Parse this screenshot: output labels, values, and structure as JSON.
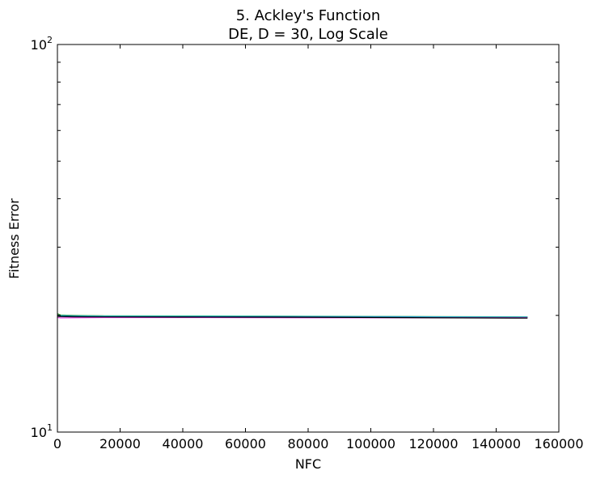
{
  "chart_data": {
    "type": "line",
    "title": "5.   Ackley's Function",
    "subtitle": "DE, D = 30, Log Scale",
    "xlabel": "NFC",
    "ylabel": "Fitness Error",
    "xlim": [
      0,
      160000
    ],
    "ylim": [
      10,
      100
    ],
    "yscale": "log",
    "grid": false,
    "x_ticks": [
      "0",
      "20000",
      "40000",
      "60000",
      "80000",
      "100000",
      "120000",
      "140000",
      "160000"
    ],
    "y_ticks": [
      {
        "value": 10,
        "base": "10",
        "exp": "1"
      },
      {
        "value": 100,
        "base": "10",
        "exp": "2"
      }
    ],
    "series": [
      {
        "color": "#d62728",
        "x": [
          0,
          1000,
          5000,
          15000,
          40000,
          80000,
          120000,
          150000
        ],
        "y": [
          20.15,
          20.02,
          19.98,
          19.93,
          19.92,
          19.88,
          19.8,
          19.78
        ]
      },
      {
        "color": "#2ca02c",
        "x": [
          0,
          1000,
          5000,
          15000,
          40000,
          80000,
          120000,
          150000
        ],
        "y": [
          20.2,
          20.05,
          20.0,
          19.95,
          19.94,
          19.9,
          19.85,
          19.82
        ]
      },
      {
        "color": "#17becf",
        "x": [
          0,
          1000,
          5000,
          15000,
          40000,
          80000,
          120000,
          150000
        ],
        "y": [
          20.05,
          19.97,
          19.94,
          19.91,
          19.9,
          19.87,
          19.83,
          19.8
        ]
      },
      {
        "color": "#1f3fbf",
        "x": [
          0,
          1000,
          5000,
          15000,
          40000,
          80000,
          120000,
          150000
        ],
        "y": [
          19.95,
          19.9,
          19.86,
          19.84,
          19.83,
          19.8,
          19.76,
          19.74
        ]
      },
      {
        "color": "#e040e0",
        "x": [
          0,
          1000,
          5000,
          15000,
          40000,
          80000,
          120000,
          150000
        ],
        "y": [
          19.75,
          19.7,
          19.72,
          19.74,
          19.74,
          19.72,
          19.72,
          19.72
        ]
      },
      {
        "color": "#000000",
        "x": [
          0,
          1000,
          5000,
          15000,
          40000,
          80000,
          120000,
          150000
        ],
        "y": [
          19.9,
          19.86,
          19.84,
          19.82,
          19.8,
          19.78,
          19.72,
          19.68
        ]
      }
    ]
  }
}
